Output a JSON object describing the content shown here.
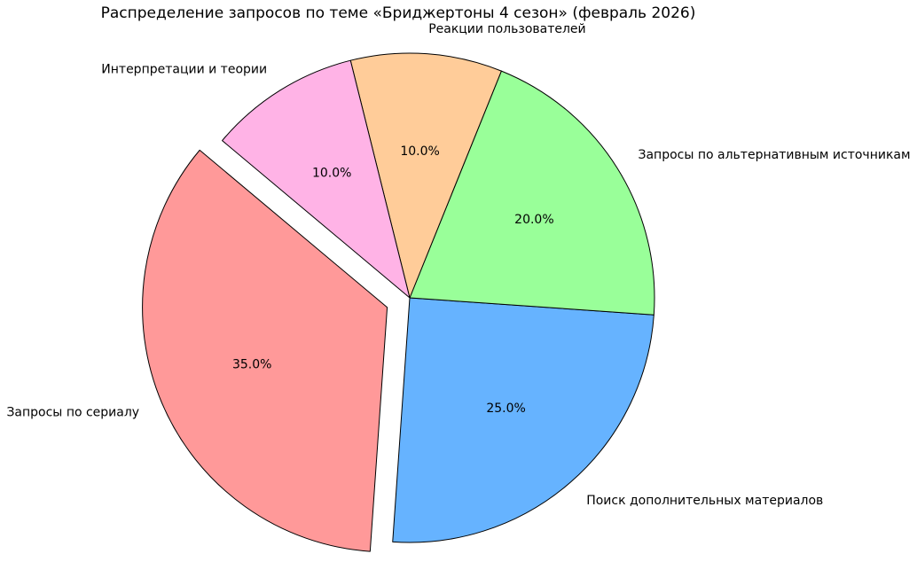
{
  "title": "Распределение запросов по теме «Бриджертоны 4 сезон» (февраль 2026)",
  "chart_data": {
    "type": "pie",
    "title": "Распределение запросов по теме «Бриджертоны 4 сезон» (февраль 2026)",
    "start_angle_deg": 140,
    "direction": "counterclockwise",
    "edge_color": "#000000",
    "background_color": "#ffffff",
    "label_distance": 1.1,
    "pct_distance": 0.6,
    "total": 100,
    "slices": [
      {
        "label": "Запросы по сериалу",
        "value": 35.0,
        "pct_label": "35.0%",
        "color": "#ff9999",
        "explode": 0.1
      },
      {
        "label": "Поиск дополнительных материалов",
        "value": 25.0,
        "pct_label": "25.0%",
        "color": "#66b3ff",
        "explode": 0
      },
      {
        "label": "Запросы по альтернативным источникам",
        "value": 20.0,
        "pct_label": "20.0%",
        "color": "#99ff99",
        "explode": 0
      },
      {
        "label": "Реакции пользователей",
        "value": 10.0,
        "pct_label": "10.0%",
        "color": "#ffcc99",
        "explode": 0
      },
      {
        "label": "Интерпретации и теории",
        "value": 10.0,
        "pct_label": "10.0%",
        "color": "#ffb3e6",
        "explode": 0
      }
    ]
  }
}
